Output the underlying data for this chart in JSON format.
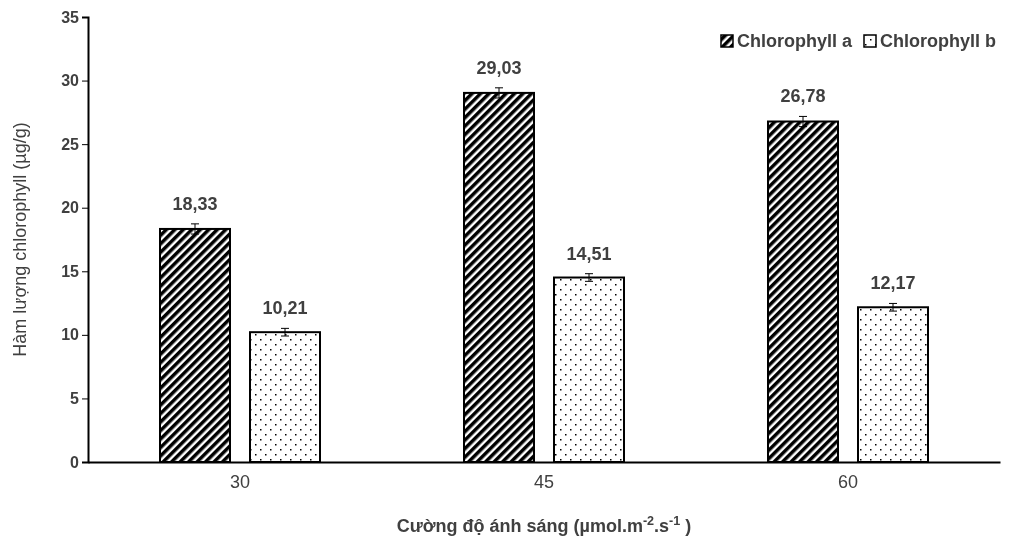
{
  "chart_data": {
    "type": "bar",
    "xlabel": "Cường độ ánh sáng (µmol.m$^{-2}$.s$^{-1}$ )",
    "ylabel": "Hàm lượng chlorophyll (µg/g)",
    "categories": [
      "30",
      "45",
      "60"
    ],
    "series": [
      {
        "name": "Chlorophyll a",
        "color": "#000000",
        "values": [
          18.33,
          29.03,
          26.78
        ],
        "errors": [
          0.4,
          0.4,
          0.4
        ],
        "value_labels": [
          "18,33",
          "29,03",
          "26,78"
        ]
      },
      {
        "name": "Chlorophyll b",
        "color": "#000000",
        "values": [
          10.21,
          14.51,
          12.17
        ],
        "errors": [
          0.3,
          0.3,
          0.3
        ],
        "value_labels": [
          "10,21",
          "14,51",
          "12,17"
        ]
      }
    ],
    "ylim": [
      0,
      35
    ],
    "yticks": [
      0,
      5,
      10,
      15,
      20,
      25,
      30,
      35
    ],
    "grid": false,
    "legend": "top right"
  }
}
